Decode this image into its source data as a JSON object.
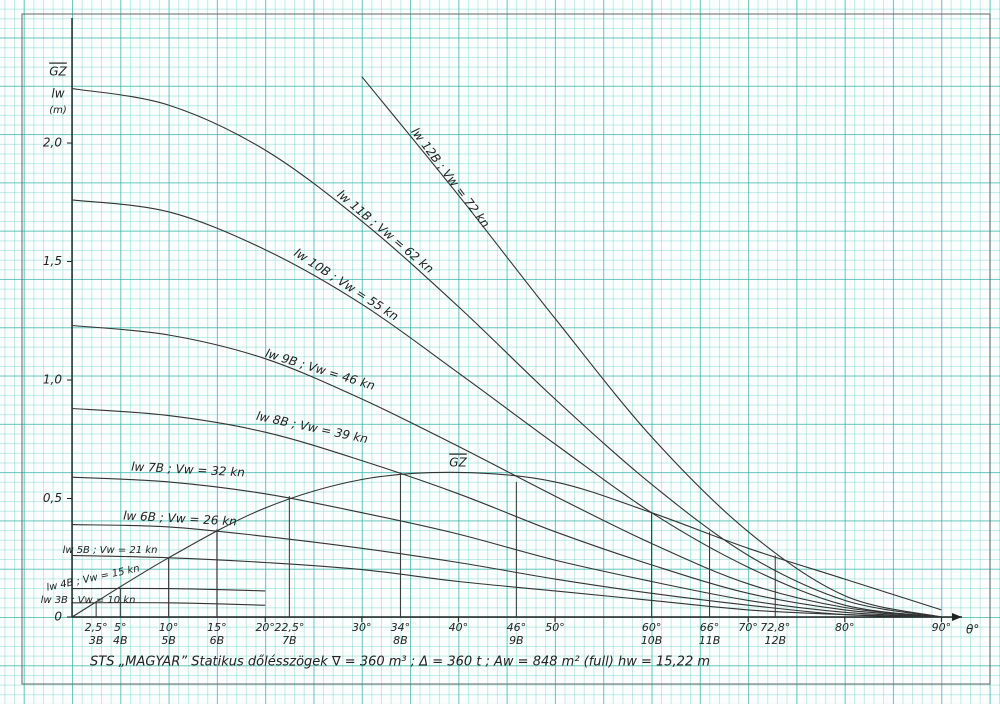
{
  "chart_data": {
    "type": "line",
    "title": "STS „MAGYAR”   Statikus dőlésszögek    ∇ = 360 m³ ;  Δ = 360 t ;  Aw = 848 m²  (full)  hw = 15,22 m",
    "y_label": [
      "GZ",
      "lw",
      "(m)"
    ],
    "x_label": "θ°",
    "x": [
      0,
      10,
      20,
      30,
      40,
      50,
      60,
      70,
      80,
      90
    ],
    "xlim": [
      0,
      92
    ],
    "ylim": [
      0,
      2.52
    ],
    "xticks": [
      {
        "value": 20,
        "label": "20°"
      },
      {
        "value": 30,
        "label": "30°"
      },
      {
        "value": 40,
        "label": "40°"
      },
      {
        "value": 50,
        "label": "50°"
      },
      {
        "value": 70,
        "label": "70°"
      },
      {
        "value": 80,
        "label": "80°"
      },
      {
        "value": 90,
        "label": "90°"
      }
    ],
    "yticks": [
      0,
      {
        "value": 0.5,
        "label": "0,5"
      },
      {
        "value": 1.0,
        "label": "1,0"
      },
      {
        "value": 1.5,
        "label": "1,5"
      },
      {
        "value": 2.0,
        "label": "2,0"
      }
    ],
    "grid": true,
    "series": [
      {
        "name": "GZ",
        "color": "#333333",
        "values": [
          0,
          0.25,
          0.46,
          0.58,
          0.61,
          0.57,
          0.44,
          0.29,
          0.16,
          0.03
        ]
      },
      {
        "name": "lw 12B ; Vw = 72 kn",
        "color": "#333333",
        "values": [
          null,
          null,
          null,
          2.28,
          1.78,
          1.26,
          0.76,
          0.36,
          0.09,
          0
        ]
      },
      {
        "name": "lw 11B ; Vw = 62 kn",
        "color": "#333333",
        "values": [
          2.23,
          2.16,
          1.97,
          1.67,
          1.31,
          0.92,
          0.56,
          0.26,
          0.07,
          0
        ]
      },
      {
        "name": "lw 10B ; Vw = 55 kn",
        "color": "#333333",
        "values": [
          1.76,
          1.71,
          1.55,
          1.32,
          1.03,
          0.73,
          0.44,
          0.21,
          0.05,
          0
        ]
      },
      {
        "name": "lw 9B ; Vw = 46 kn",
        "color": "#333333",
        "values": [
          1.23,
          1.19,
          1.09,
          0.92,
          0.72,
          0.51,
          0.31,
          0.14,
          0.04,
          0
        ]
      },
      {
        "name": "lw 8B ; Vw = 39 kn",
        "color": "#333333",
        "values": [
          0.88,
          0.85,
          0.78,
          0.66,
          0.52,
          0.36,
          0.22,
          0.1,
          0.03,
          0
        ]
      },
      {
        "name": "lw 7B ; Vw = 32 kn",
        "color": "#333333",
        "values": [
          0.59,
          0.57,
          0.52,
          0.44,
          0.35,
          0.24,
          0.15,
          0.07,
          0.02,
          0
        ]
      },
      {
        "name": "lw 6B ; Vw = 26 kn",
        "color": "#333333",
        "values": [
          0.39,
          0.38,
          0.34,
          0.29,
          0.23,
          0.16,
          0.1,
          0.05,
          0.01,
          0
        ]
      },
      {
        "name": "lw 5B ; Vw = 21 kn",
        "color": "#333333",
        "values": [
          0.26,
          0.25,
          0.23,
          0.2,
          0.15,
          0.11,
          0.07,
          0.03,
          0.01,
          0
        ]
      },
      {
        "name": "lw 4B ; Vw = 15 kn",
        "color": "#333333",
        "values": [
          0.12,
          0.12,
          0.11,
          null,
          null,
          null,
          null,
          null,
          null,
          null
        ]
      },
      {
        "name": "lw 3B ; Vw = 10 kn",
        "color": "#333333",
        "values": [
          0.06,
          0.06,
          0.05,
          null,
          null,
          null,
          null,
          null,
          null,
          null
        ]
      }
    ],
    "intersections": [
      {
        "angle": {
          "value": 2.5,
          "label": "2,5°"
        },
        "name": "3B",
        "gz": 0.06
      },
      {
        "angle": {
          "value": 5,
          "label": "5°"
        },
        "name": "4B",
        "gz": 0.12
      },
      {
        "angle": {
          "value": 10,
          "label": "10°"
        },
        "name": "5B",
        "gz": 0.25
      },
      {
        "angle": {
          "value": 15,
          "label": "15°"
        },
        "name": "6B",
        "gz": 0.37
      },
      {
        "angle": {
          "value": 22.5,
          "label": "22,5°"
        },
        "name": "7B",
        "gz": 0.51
      },
      {
        "angle": {
          "value": 34,
          "label": "34°"
        },
        "name": "8B",
        "gz": 0.61
      },
      {
        "angle": {
          "value": 46,
          "label": "46°"
        },
        "name": "9B",
        "gz": 0.57
      },
      {
        "angle": {
          "value": 60,
          "label": "60°"
        },
        "name": "10B",
        "gz": 0.44
      },
      {
        "angle": {
          "value": 66,
          "label": "66°"
        },
        "name": "11B",
        "gz": 0.36
      },
      {
        "angle": {
          "value": 72.8,
          "label": "72,8°"
        },
        "name": "12B",
        "gz": 0.26
      }
    ]
  }
}
